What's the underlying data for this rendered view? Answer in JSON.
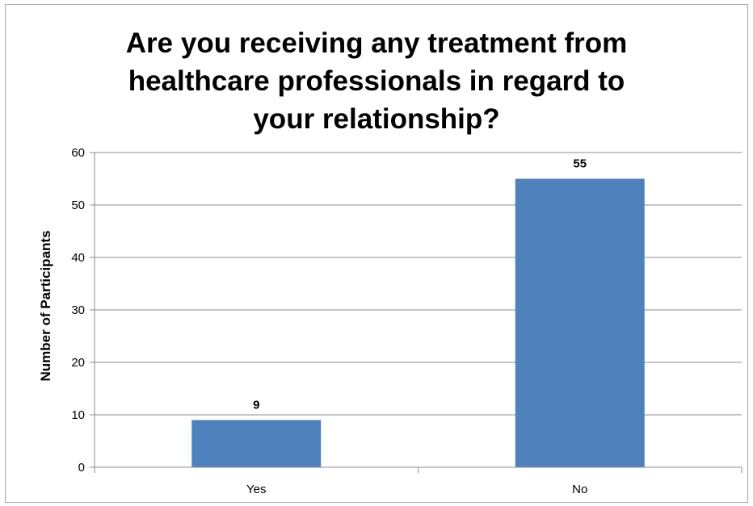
{
  "chart_data": {
    "type": "bar",
    "title_lines": [
      "Are you receiving any treatment from",
      "healthcare professionals in regard to",
      "your relationship?"
    ],
    "xlabel": "",
    "ylabel": "Number of Participants",
    "categories": [
      "Yes",
      "No"
    ],
    "values": [
      9,
      55
    ],
    "ylim": [
      0,
      60
    ],
    "yticks": [
      0,
      10,
      20,
      30,
      40,
      50,
      60
    ],
    "grid": true,
    "data_labels": true,
    "bar_color": "#4f81bd",
    "grid_color": "#8c8c8c"
  }
}
